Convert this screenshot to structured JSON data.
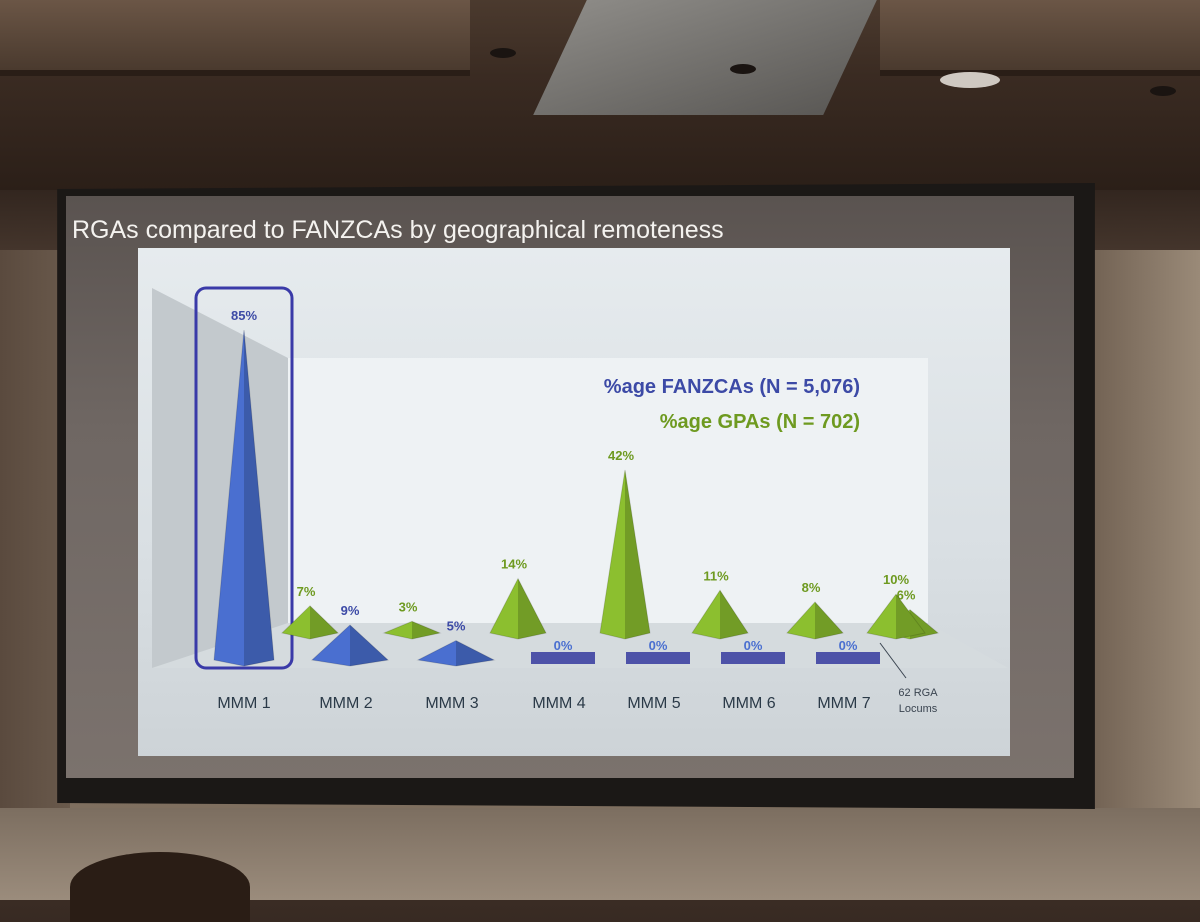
{
  "slide": {
    "title": "RGAs compared to FANZCAs by geographical remoteness"
  },
  "chart_data": {
    "type": "bar",
    "title": "RGAs compared to FANZCAs by geographical remoteness",
    "categories": [
      "MMM 1",
      "MMM 2",
      "MMM 3",
      "MMM 4",
      "MMM 5",
      "MMM 6",
      "MMM 7"
    ],
    "series": [
      {
        "name": "%age FANZCAs (N = 5,076)",
        "color": "#4a6fd0",
        "values": [
          85,
          9,
          5,
          0,
          0,
          0,
          0
        ],
        "labels": [
          "85%",
          "9%",
          "5%",
          "0%",
          "0%",
          "0%",
          "0%"
        ]
      },
      {
        "name": "%age GPAs (N = 702)",
        "color": "#8cbf2f",
        "values": [
          7,
          3,
          14,
          42,
          11,
          8,
          6
        ],
        "labels": [
          "7%",
          "3%",
          "14%",
          "42%",
          "11%",
          "8%",
          "6%"
        ]
      }
    ],
    "extra_point": {
      "label": "10%",
      "value": 10,
      "note": [
        "62 RGA",
        "Locums"
      ]
    },
    "ylim": [
      0,
      85
    ],
    "legend_placement": "top-right",
    "highlight_category": "MMM 1"
  }
}
